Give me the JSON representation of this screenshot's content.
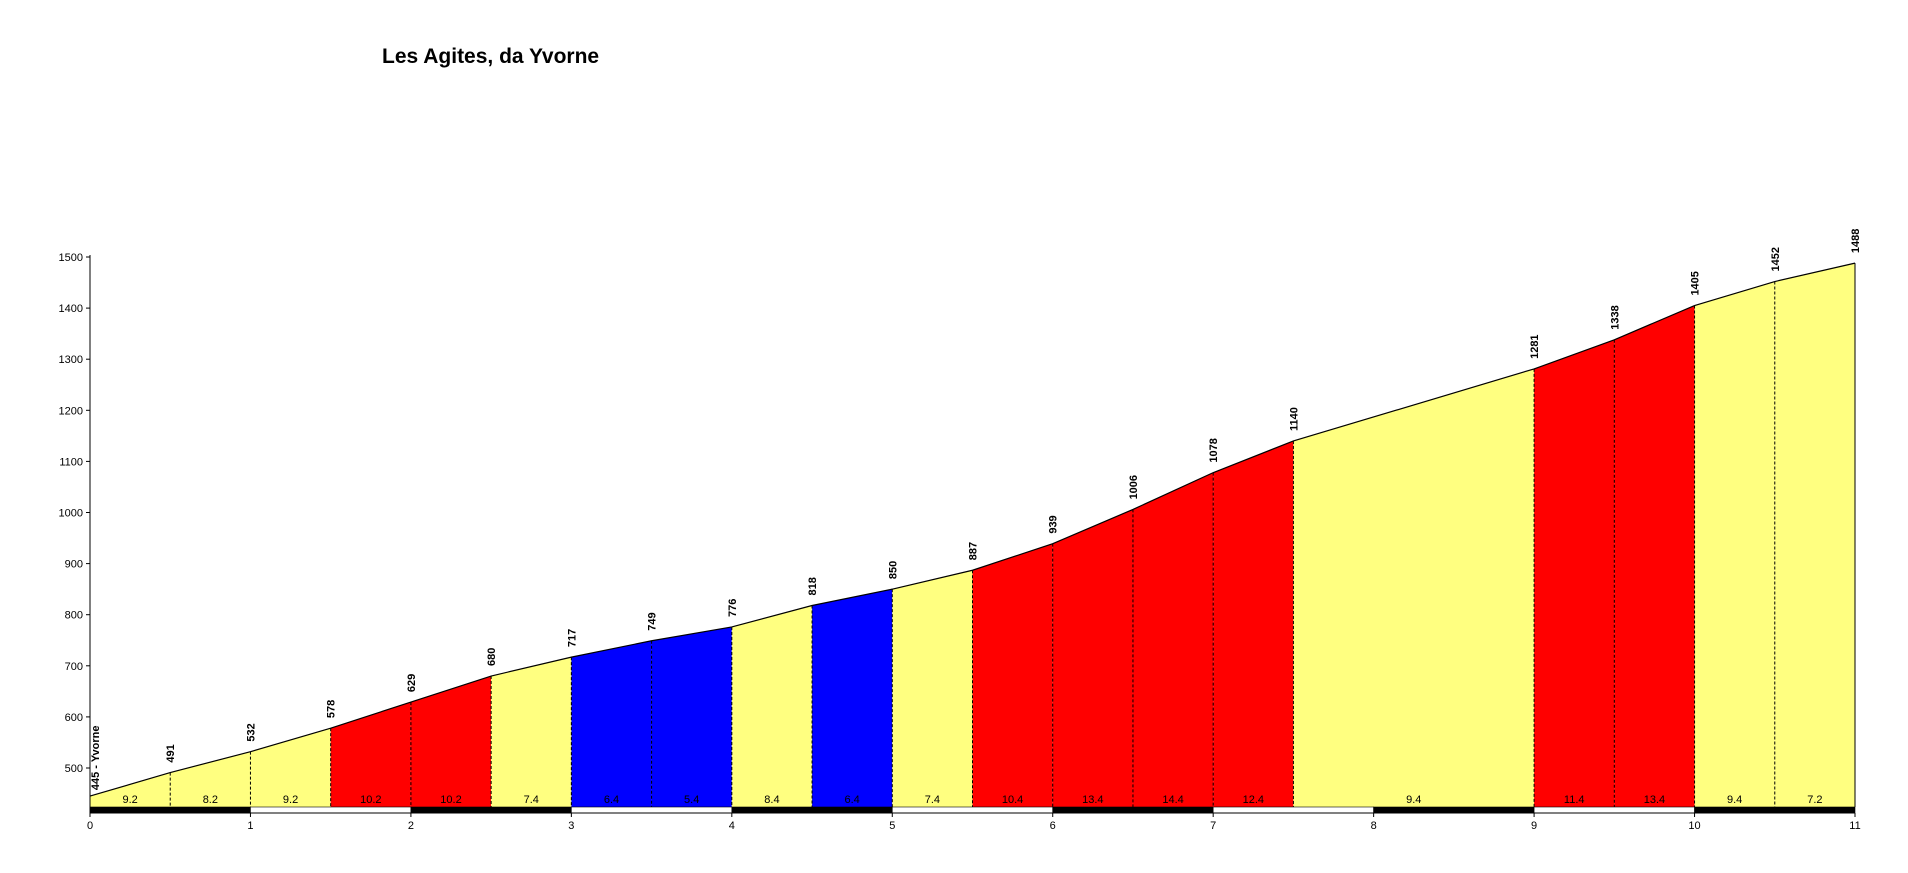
{
  "chart_data": {
    "type": "area",
    "title": "Les Agites, da Yvorne",
    "xlabel": "",
    "ylabel": "",
    "xlim": [
      0,
      11
    ],
    "ylim": [
      420,
      1500
    ],
    "x_ticks": [
      0,
      1,
      2,
      3,
      4,
      5,
      6,
      7,
      8,
      9,
      10,
      11
    ],
    "y_ticks": [
      500,
      600,
      700,
      800,
      900,
      1000,
      1100,
      1200,
      1300,
      1400,
      1500
    ],
    "grid": false,
    "legend": "none",
    "start_label": "445 - Yvorne",
    "points": [
      {
        "x": 0.0,
        "y": 445
      },
      {
        "x": 0.5,
        "y": 491
      },
      {
        "x": 1.0,
        "y": 532
      },
      {
        "x": 1.5,
        "y": 578
      },
      {
        "x": 2.0,
        "y": 629
      },
      {
        "x": 2.5,
        "y": 680
      },
      {
        "x": 3.0,
        "y": 717
      },
      {
        "x": 3.5,
        "y": 749
      },
      {
        "x": 4.0,
        "y": 776
      },
      {
        "x": 4.5,
        "y": 818
      },
      {
        "x": 5.0,
        "y": 850
      },
      {
        "x": 5.5,
        "y": 887
      },
      {
        "x": 6.0,
        "y": 939
      },
      {
        "x": 6.5,
        "y": 1006
      },
      {
        "x": 7.0,
        "y": 1078
      },
      {
        "x": 7.5,
        "y": 1140
      },
      {
        "x": 9.0,
        "y": 1281
      },
      {
        "x": 9.5,
        "y": 1338
      },
      {
        "x": 10.0,
        "y": 1405
      },
      {
        "x": 10.5,
        "y": 1452
      },
      {
        "x": 11.0,
        "y": 1488
      }
    ],
    "elevation_labels": [
      "",
      "491",
      "532",
      "578",
      "629",
      "680",
      "717",
      "749",
      "776",
      "818",
      "850",
      "887",
      "939",
      "1006",
      "1078",
      "1140",
      "1281",
      "1338",
      "1405",
      "1452",
      "1488"
    ],
    "segments": [
      {
        "start": 0.0,
        "end": 0.5,
        "grade": "9.2",
        "color": "#ffff80"
      },
      {
        "start": 0.5,
        "end": 1.0,
        "grade": "8.2",
        "color": "#ffff80"
      },
      {
        "start": 1.0,
        "end": 1.5,
        "grade": "9.2",
        "color": "#ffff80"
      },
      {
        "start": 1.5,
        "end": 2.0,
        "grade": "10.2",
        "color": "#ff0000"
      },
      {
        "start": 2.0,
        "end": 2.5,
        "grade": "10.2",
        "color": "#ff0000"
      },
      {
        "start": 2.5,
        "end": 3.0,
        "grade": "7.4",
        "color": "#ffff80"
      },
      {
        "start": 3.0,
        "end": 3.5,
        "grade": "6.4",
        "color": "#0000ff"
      },
      {
        "start": 3.5,
        "end": 4.0,
        "grade": "5.4",
        "color": "#0000ff"
      },
      {
        "start": 4.0,
        "end": 4.5,
        "grade": "8.4",
        "color": "#ffff80"
      },
      {
        "start": 4.5,
        "end": 5.0,
        "grade": "6.4",
        "color": "#0000ff"
      },
      {
        "start": 5.0,
        "end": 5.5,
        "grade": "7.4",
        "color": "#ffff80"
      },
      {
        "start": 5.5,
        "end": 6.0,
        "grade": "10.4",
        "color": "#ff0000"
      },
      {
        "start": 6.0,
        "end": 6.5,
        "grade": "13.4",
        "color": "#ff0000"
      },
      {
        "start": 6.5,
        "end": 7.0,
        "grade": "14.4",
        "color": "#ff0000"
      },
      {
        "start": 7.0,
        "end": 7.5,
        "grade": "12.4",
        "color": "#ff0000"
      },
      {
        "start": 7.5,
        "end": 9.0,
        "grade": "9.4",
        "color": "#ffff80"
      },
      {
        "start": 9.0,
        "end": 9.5,
        "grade": "11.4",
        "color": "#ff0000"
      },
      {
        "start": 9.5,
        "end": 10.0,
        "grade": "13.4",
        "color": "#ff0000"
      },
      {
        "start": 10.0,
        "end": 10.5,
        "grade": "9.4",
        "color": "#ffff80"
      },
      {
        "start": 10.5,
        "end": 11.0,
        "grade": "7.2",
        "color": "#ffff80"
      }
    ],
    "km_bar": [
      {
        "start": 0.0,
        "end": 1.0,
        "color": "#000000"
      },
      {
        "start": 1.0,
        "end": 2.0,
        "color": "#ffffff"
      },
      {
        "start": 2.0,
        "end": 3.0,
        "color": "#000000"
      },
      {
        "start": 3.0,
        "end": 4.0,
        "color": "#ffffff"
      },
      {
        "start": 4.0,
        "end": 5.0,
        "color": "#000000"
      },
      {
        "start": 5.0,
        "end": 6.0,
        "color": "#ffffff"
      },
      {
        "start": 6.0,
        "end": 7.0,
        "color": "#000000"
      },
      {
        "start": 7.0,
        "end": 8.0,
        "color": "#ffffff"
      },
      {
        "start": 8.0,
        "end": 9.0,
        "color": "#000000"
      },
      {
        "start": 9.0,
        "end": 10.0,
        "color": "#ffffff"
      },
      {
        "start": 10.0,
        "end": 11.0,
        "color": "#000000"
      }
    ]
  }
}
